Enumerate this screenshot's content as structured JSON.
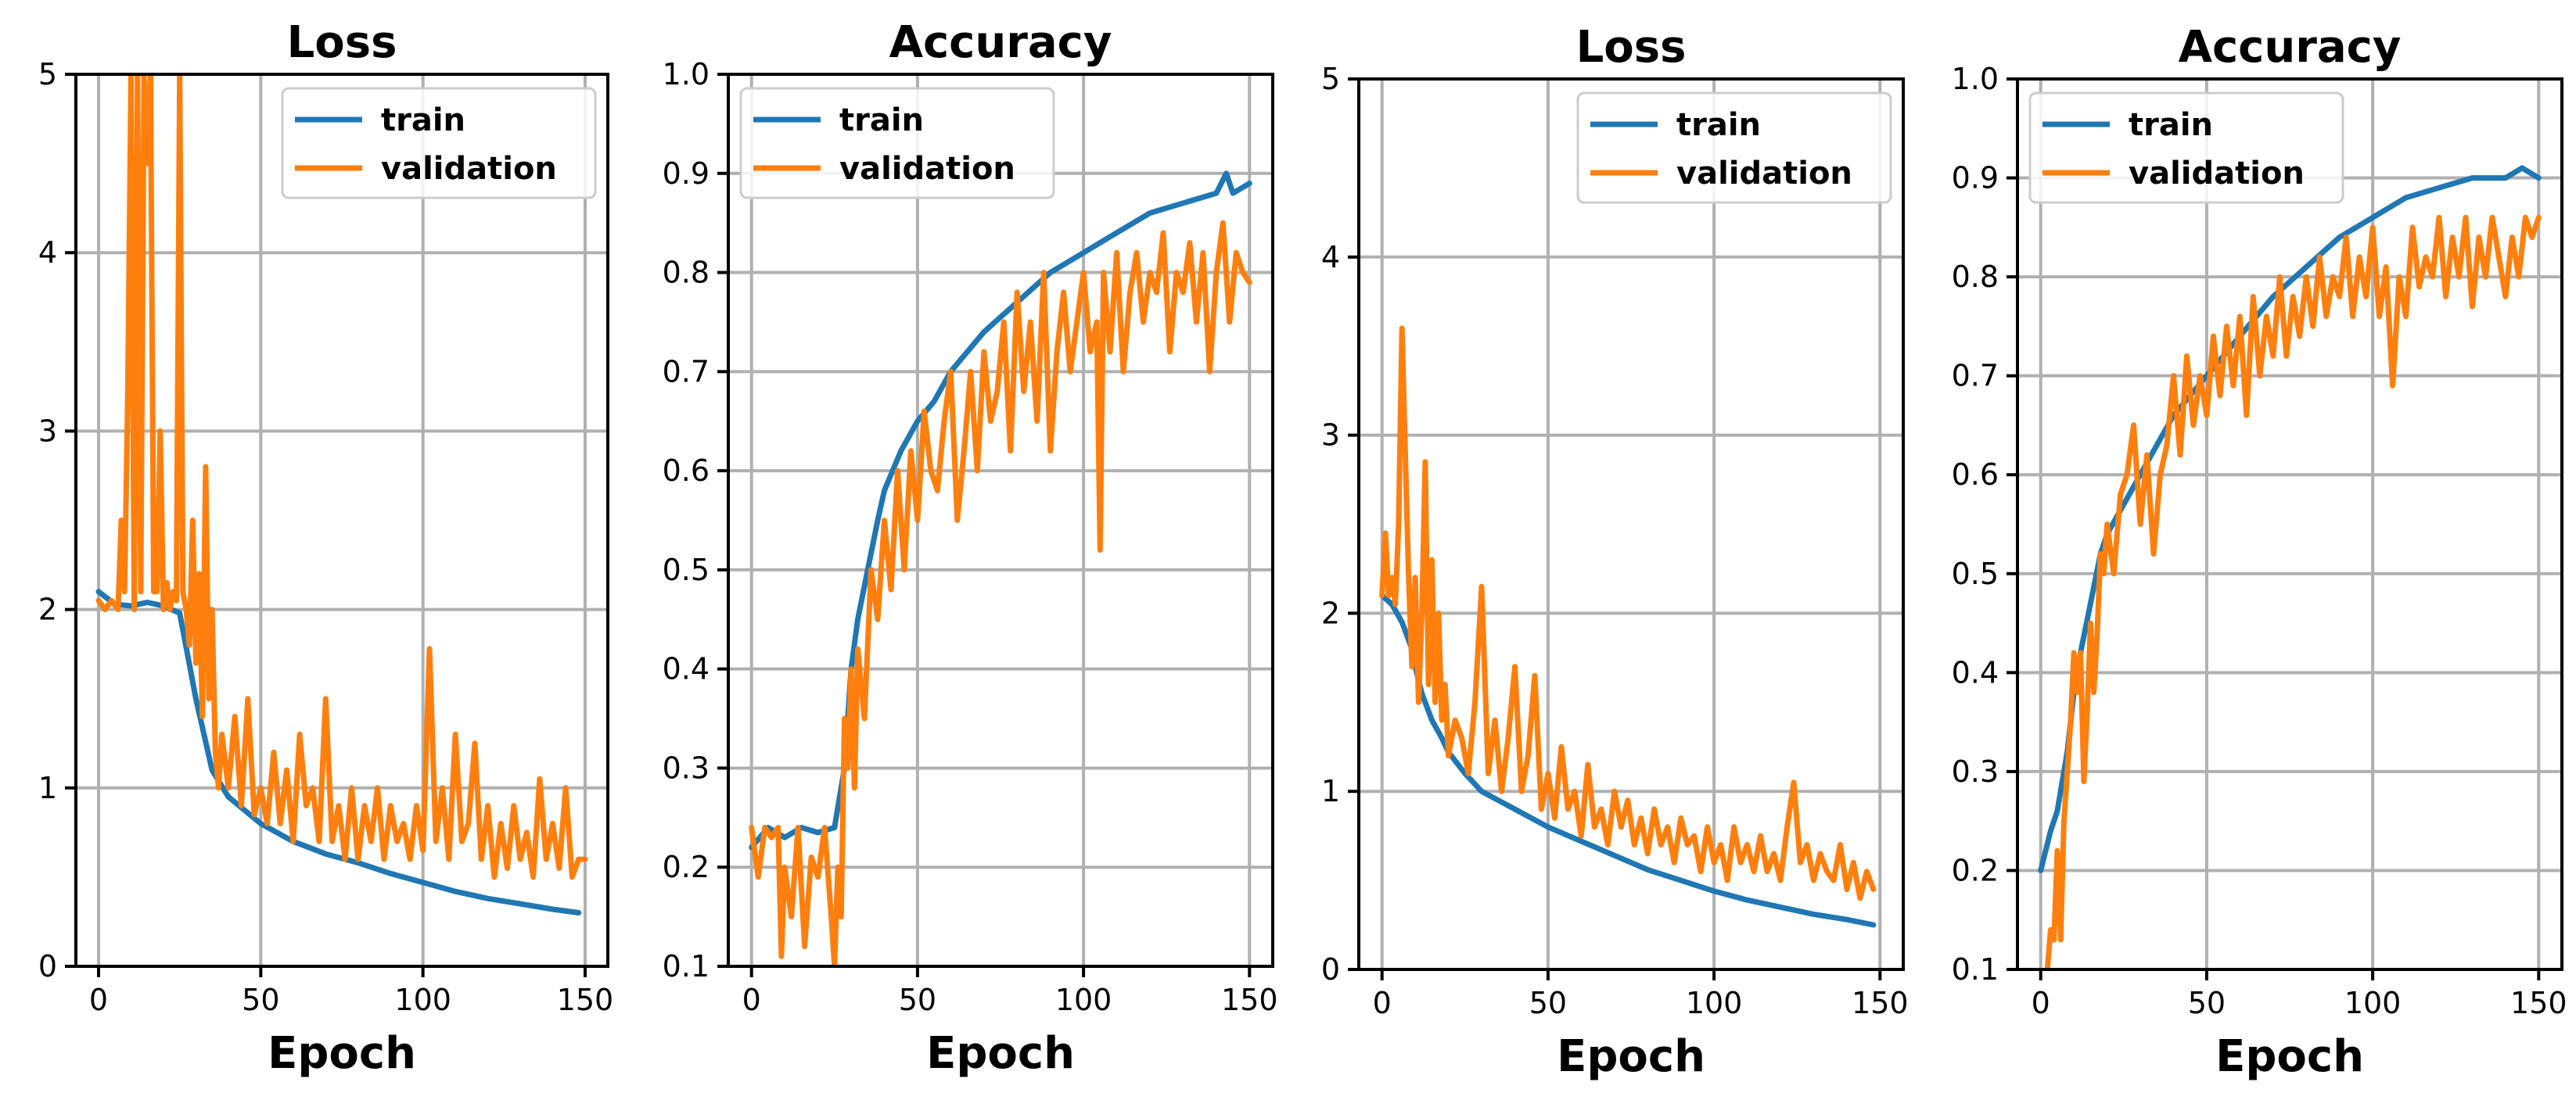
{
  "colors": {
    "train": "#1f77b4",
    "validation": "#ff7f0e"
  },
  "chart_data": [
    {
      "type": "line",
      "title": "Loss",
      "xlabel": "Epoch",
      "ylabel": "",
      "xlim": [
        -7,
        157
      ],
      "ylim": [
        0,
        5
      ],
      "xticks": [
        0,
        50,
        100,
        150
      ],
      "yticks": [
        0,
        1,
        2,
        3,
        4,
        5
      ],
      "ytick_labels": [
        "0",
        "1",
        "2",
        "3",
        "4",
        "5"
      ],
      "grid": true,
      "legend": "top-right",
      "series": [
        {
          "name": "train",
          "color": "#1f77b4",
          "x": [
            0,
            5,
            10,
            15,
            20,
            25,
            30,
            35,
            40,
            50,
            60,
            70,
            80,
            90,
            100,
            110,
            120,
            130,
            140,
            148
          ],
          "values": [
            2.1,
            2.03,
            2.02,
            2.04,
            2.02,
            1.98,
            1.5,
            1.1,
            0.95,
            0.8,
            0.7,
            0.63,
            0.58,
            0.52,
            0.47,
            0.42,
            0.38,
            0.35,
            0.32,
            0.3
          ]
        },
        {
          "name": "validation",
          "color": "#ff7f0e",
          "x": [
            0,
            2,
            4,
            6,
            7,
            8,
            9,
            10,
            11,
            12,
            13,
            14,
            15,
            16,
            17,
            18,
            19,
            20,
            21,
            22,
            23,
            24,
            25,
            26,
            27,
            28,
            29,
            30,
            31,
            32,
            33,
            34,
            35,
            36,
            37,
            38,
            40,
            42,
            44,
            46,
            48,
            50,
            52,
            54,
            56,
            58,
            60,
            62,
            64,
            66,
            68,
            70,
            72,
            74,
            76,
            78,
            80,
            82,
            84,
            86,
            88,
            90,
            92,
            94,
            96,
            98,
            100,
            102,
            104,
            106,
            108,
            110,
            112,
            114,
            116,
            118,
            120,
            122,
            124,
            126,
            128,
            130,
            132,
            134,
            136,
            138,
            140,
            142,
            144,
            146,
            148,
            150
          ],
          "values": [
            2.05,
            2.0,
            2.05,
            2.0,
            2.5,
            2.1,
            3.2,
            5.0,
            2.0,
            5.0,
            2.1,
            5.0,
            4.5,
            5.0,
            2.1,
            2.1,
            3.0,
            2.0,
            2.15,
            2.0,
            2.1,
            2.05,
            5.0,
            2.1,
            2.0,
            1.8,
            2.5,
            1.7,
            2.2,
            1.4,
            2.8,
            1.5,
            2.0,
            1.2,
            1.0,
            1.3,
            1.0,
            1.4,
            0.9,
            1.5,
            0.85,
            1.0,
            0.8,
            1.2,
            0.8,
            1.1,
            0.7,
            1.3,
            0.9,
            1.0,
            0.7,
            1.5,
            0.7,
            0.9,
            0.6,
            1.0,
            0.6,
            0.9,
            0.7,
            1.0,
            0.6,
            0.9,
            0.7,
            0.8,
            0.6,
            0.9,
            0.65,
            1.78,
            0.7,
            1.0,
            0.6,
            1.3,
            0.7,
            0.8,
            1.25,
            0.6,
            0.9,
            0.5,
            0.8,
            0.55,
            0.9,
            0.6,
            0.75,
            0.5,
            1.05,
            0.6,
            0.8,
            0.55,
            1.0,
            0.5,
            0.6,
            0.6
          ]
        }
      ]
    },
    {
      "type": "line",
      "title": "Accuracy",
      "xlabel": "Epoch",
      "ylabel": "",
      "xlim": [
        -7,
        157
      ],
      "ylim": [
        0.1,
        1.0
      ],
      "xticks": [
        0,
        50,
        100,
        150
      ],
      "yticks": [
        0.1,
        0.2,
        0.3,
        0.4,
        0.5,
        0.6,
        0.7,
        0.8,
        0.9,
        1.0
      ],
      "ytick_labels": [
        "0.1",
        "0.2",
        "0.3",
        "0.4",
        "0.5",
        "0.6",
        "0.7",
        "0.8",
        "0.9",
        "1.0"
      ],
      "grid": true,
      "legend": "top-left",
      "series": [
        {
          "name": "train",
          "color": "#1f77b4",
          "x": [
            0,
            5,
            10,
            15,
            20,
            25,
            28,
            30,
            32,
            35,
            38,
            40,
            45,
            50,
            55,
            60,
            70,
            80,
            90,
            100,
            110,
            120,
            130,
            140,
            143,
            145,
            150
          ],
          "values": [
            0.22,
            0.24,
            0.23,
            0.24,
            0.235,
            0.24,
            0.3,
            0.4,
            0.45,
            0.5,
            0.55,
            0.58,
            0.62,
            0.65,
            0.67,
            0.7,
            0.74,
            0.77,
            0.8,
            0.82,
            0.84,
            0.86,
            0.87,
            0.88,
            0.9,
            0.88,
            0.89
          ]
        },
        {
          "name": "validation",
          "color": "#ff7f0e",
          "x": [
            0,
            2,
            4,
            6,
            8,
            9,
            10,
            12,
            14,
            16,
            18,
            20,
            22,
            24,
            25,
            26,
            27,
            28,
            29,
            30,
            31,
            32,
            34,
            36,
            38,
            40,
            42,
            44,
            46,
            48,
            50,
            52,
            54,
            56,
            58,
            60,
            62,
            64,
            66,
            68,
            70,
            72,
            74,
            76,
            78,
            80,
            82,
            84,
            86,
            88,
            90,
            92,
            94,
            96,
            98,
            100,
            102,
            104,
            105,
            106,
            108,
            110,
            112,
            114,
            116,
            118,
            120,
            122,
            124,
            126,
            128,
            130,
            132,
            134,
            136,
            138,
            140,
            142,
            144,
            146,
            148,
            150
          ],
          "values": [
            0.24,
            0.19,
            0.24,
            0.23,
            0.24,
            0.11,
            0.2,
            0.15,
            0.24,
            0.12,
            0.21,
            0.19,
            0.24,
            0.15,
            0.1,
            0.2,
            0.15,
            0.35,
            0.3,
            0.4,
            0.28,
            0.42,
            0.35,
            0.5,
            0.45,
            0.55,
            0.48,
            0.6,
            0.5,
            0.62,
            0.55,
            0.66,
            0.6,
            0.58,
            0.65,
            0.7,
            0.55,
            0.62,
            0.7,
            0.6,
            0.72,
            0.65,
            0.68,
            0.75,
            0.62,
            0.78,
            0.68,
            0.75,
            0.65,
            0.8,
            0.62,
            0.72,
            0.78,
            0.7,
            0.75,
            0.8,
            0.72,
            0.75,
            0.52,
            0.8,
            0.72,
            0.82,
            0.7,
            0.78,
            0.82,
            0.75,
            0.8,
            0.78,
            0.84,
            0.72,
            0.8,
            0.78,
            0.83,
            0.75,
            0.82,
            0.7,
            0.8,
            0.85,
            0.75,
            0.82,
            0.8,
            0.79
          ]
        }
      ]
    },
    {
      "type": "line",
      "title": "Loss",
      "xlabel": "Epoch",
      "ylabel": "",
      "xlim": [
        -7,
        157
      ],
      "ylim": [
        0,
        5
      ],
      "xticks": [
        0,
        50,
        100,
        150
      ],
      "yticks": [
        0,
        1,
        2,
        3,
        4,
        5
      ],
      "ytick_labels": [
        "0",
        "1",
        "2",
        "3",
        "4",
        "5"
      ],
      "grid": true,
      "legend": "top-right",
      "series": [
        {
          "name": "train",
          "color": "#1f77b4",
          "x": [
            0,
            3,
            6,
            9,
            10,
            12,
            15,
            18,
            20,
            25,
            30,
            35,
            40,
            50,
            60,
            70,
            80,
            90,
            100,
            110,
            120,
            130,
            140,
            148
          ],
          "values": [
            2.1,
            2.05,
            1.95,
            1.8,
            1.7,
            1.55,
            1.4,
            1.3,
            1.22,
            1.1,
            1.0,
            0.95,
            0.9,
            0.8,
            0.72,
            0.64,
            0.56,
            0.5,
            0.44,
            0.39,
            0.35,
            0.31,
            0.28,
            0.25
          ]
        },
        {
          "name": "validation",
          "color": "#ff7f0e",
          "x": [
            0,
            1,
            2,
            3,
            4,
            5,
            6,
            7,
            8,
            9,
            10,
            11,
            12,
            13,
            14,
            15,
            16,
            17,
            18,
            19,
            20,
            22,
            24,
            26,
            28,
            30,
            32,
            34,
            36,
            38,
            40,
            42,
            44,
            46,
            48,
            50,
            52,
            54,
            56,
            58,
            60,
            62,
            64,
            66,
            68,
            70,
            72,
            74,
            76,
            78,
            80,
            82,
            84,
            86,
            88,
            90,
            92,
            94,
            96,
            98,
            100,
            102,
            104,
            106,
            108,
            110,
            112,
            114,
            116,
            118,
            120,
            122,
            124,
            126,
            128,
            130,
            132,
            134,
            136,
            138,
            140,
            142,
            144,
            146,
            148
          ],
          "values": [
            2.1,
            2.45,
            2.1,
            2.2,
            2.05,
            2.5,
            3.6,
            2.9,
            2.2,
            1.7,
            2.2,
            1.5,
            2.0,
            2.85,
            1.6,
            2.3,
            1.5,
            2.0,
            1.4,
            1.6,
            1.2,
            1.4,
            1.3,
            1.1,
            1.5,
            2.15,
            1.1,
            1.4,
            1.0,
            1.3,
            1.7,
            1.0,
            1.2,
            1.65,
            0.9,
            1.1,
            0.85,
            1.25,
            0.9,
            1.0,
            0.75,
            1.15,
            0.8,
            0.9,
            0.7,
            1.0,
            0.8,
            0.95,
            0.7,
            0.85,
            0.65,
            0.9,
            0.7,
            0.8,
            0.6,
            0.85,
            0.7,
            0.75,
            0.55,
            0.8,
            0.6,
            0.7,
            0.5,
            0.8,
            0.6,
            0.7,
            0.55,
            0.75,
            0.55,
            0.65,
            0.5,
            0.8,
            1.05,
            0.6,
            0.7,
            0.5,
            0.65,
            0.55,
            0.5,
            0.7,
            0.45,
            0.6,
            0.4,
            0.55,
            0.45
          ]
        }
      ]
    },
    {
      "type": "line",
      "title": "Accuracy",
      "xlabel": "Epoch",
      "ylabel": "",
      "xlim": [
        -7,
        157
      ],
      "ylim": [
        0.1,
        1.0
      ],
      "xticks": [
        0,
        50,
        100,
        150
      ],
      "yticks": [
        0.1,
        0.2,
        0.3,
        0.4,
        0.5,
        0.6,
        0.7,
        0.8,
        0.9,
        1.0
      ],
      "ytick_labels": [
        "0.1",
        "0.2",
        "0.3",
        "0.4",
        "0.5",
        "0.6",
        "0.7",
        "0.8",
        "0.9",
        "1.0"
      ],
      "grid": true,
      "legend": "top-left",
      "series": [
        {
          "name": "train",
          "color": "#1f77b4",
          "x": [
            0,
            3,
            5,
            8,
            10,
            12,
            15,
            18,
            20,
            25,
            30,
            35,
            40,
            45,
            50,
            60,
            70,
            80,
            90,
            100,
            110,
            120,
            130,
            140,
            145,
            150
          ],
          "values": [
            0.2,
            0.24,
            0.26,
            0.32,
            0.38,
            0.42,
            0.47,
            0.52,
            0.54,
            0.57,
            0.6,
            0.63,
            0.66,
            0.68,
            0.7,
            0.74,
            0.78,
            0.81,
            0.84,
            0.86,
            0.88,
            0.89,
            0.9,
            0.9,
            0.91,
            0.9
          ]
        },
        {
          "name": "validation",
          "color": "#ff7f0e",
          "x": [
            2,
            3,
            4,
            5,
            6,
            7,
            8,
            9,
            10,
            11,
            12,
            13,
            14,
            15,
            16,
            17,
            18,
            19,
            20,
            22,
            24,
            26,
            28,
            30,
            32,
            34,
            36,
            38,
            40,
            42,
            44,
            46,
            48,
            50,
            52,
            54,
            56,
            58,
            60,
            62,
            64,
            66,
            68,
            70,
            72,
            74,
            76,
            78,
            80,
            82,
            84,
            86,
            88,
            90,
            92,
            94,
            96,
            98,
            100,
            102,
            104,
            106,
            108,
            110,
            112,
            114,
            116,
            118,
            120,
            122,
            124,
            126,
            128,
            130,
            132,
            134,
            136,
            138,
            140,
            142,
            144,
            146,
            148,
            150
          ],
          "values": [
            0.1,
            0.14,
            0.13,
            0.22,
            0.13,
            0.25,
            0.3,
            0.35,
            0.42,
            0.38,
            0.42,
            0.29,
            0.36,
            0.45,
            0.38,
            0.44,
            0.52,
            0.5,
            0.55,
            0.5,
            0.58,
            0.6,
            0.65,
            0.55,
            0.62,
            0.52,
            0.6,
            0.63,
            0.7,
            0.62,
            0.72,
            0.65,
            0.7,
            0.66,
            0.74,
            0.68,
            0.75,
            0.69,
            0.76,
            0.66,
            0.78,
            0.7,
            0.76,
            0.72,
            0.8,
            0.72,
            0.78,
            0.74,
            0.8,
            0.75,
            0.82,
            0.76,
            0.8,
            0.78,
            0.84,
            0.76,
            0.82,
            0.78,
            0.85,
            0.76,
            0.81,
            0.69,
            0.8,
            0.76,
            0.85,
            0.79,
            0.82,
            0.8,
            0.86,
            0.78,
            0.84,
            0.8,
            0.86,
            0.77,
            0.84,
            0.8,
            0.86,
            0.82,
            0.78,
            0.84,
            0.8,
            0.86,
            0.84,
            0.86
          ]
        }
      ]
    }
  ]
}
